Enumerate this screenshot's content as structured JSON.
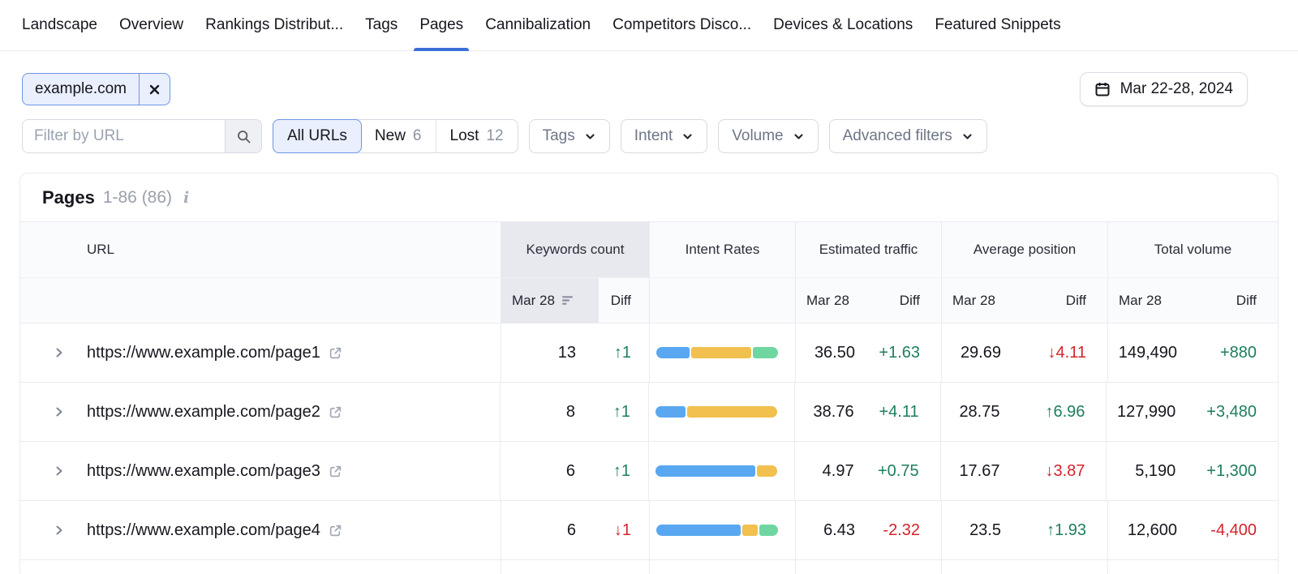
{
  "nav": {
    "tabs": [
      {
        "label": "Landscape",
        "active": false
      },
      {
        "label": "Overview",
        "active": false
      },
      {
        "label": "Rankings Distribut...",
        "active": false
      },
      {
        "label": "Tags",
        "active": false
      },
      {
        "label": "Pages",
        "active": true
      },
      {
        "label": "Cannibalization",
        "active": false
      },
      {
        "label": "Competitors Disco...",
        "active": false
      },
      {
        "label": "Devices & Locations",
        "active": false
      },
      {
        "label": "Featured Snippets",
        "active": false
      }
    ]
  },
  "filters": {
    "chip_label": "example.com",
    "date_range": "Mar 22-28, 2024",
    "url_filter_placeholder": "Filter by URL",
    "segments": [
      {
        "label": "All URLs",
        "count": "",
        "active": true
      },
      {
        "label": "New",
        "count": "6",
        "active": false
      },
      {
        "label": "Lost",
        "count": "12",
        "active": false
      }
    ],
    "dropdowns": [
      {
        "label": "Tags"
      },
      {
        "label": "Intent"
      },
      {
        "label": "Volume"
      },
      {
        "label": "Advanced filters"
      }
    ]
  },
  "table": {
    "title": "Pages",
    "range": "1-86 (86)",
    "columns": {
      "url": "URL",
      "keywords": "Keywords count",
      "intent": "Intent Rates",
      "traffic": "Estimated traffic",
      "position": "Average position",
      "volume": "Total volume",
      "sub_date": "Mar 28",
      "sub_diff": "Diff"
    },
    "rows": [
      {
        "url": "https://www.example.com/page1",
        "keywords": "13",
        "keywords_diff": "↑1",
        "keywords_trend": "up",
        "intent_segments": [
          {
            "color": "blue",
            "pct": 28
          },
          {
            "color": "yellow",
            "pct": 51
          },
          {
            "color": "green",
            "pct": 21
          }
        ],
        "traffic": "36.50",
        "traffic_diff": "+1.63",
        "traffic_trend": "up",
        "position": "29.69",
        "position_diff": "↓4.11",
        "position_trend": "down",
        "volume": "149,490",
        "volume_diff": "+880",
        "volume_trend": "up"
      },
      {
        "url": "https://www.example.com/page2",
        "keywords": "8",
        "keywords_diff": "↑1",
        "keywords_trend": "up",
        "intent_segments": [
          {
            "color": "blue",
            "pct": 25
          },
          {
            "color": "yellow",
            "pct": 75
          }
        ],
        "traffic": "38.76",
        "traffic_diff": "+4.11",
        "traffic_trend": "up",
        "position": "28.75",
        "position_diff": "↑6.96",
        "position_trend": "up",
        "volume": "127,990",
        "volume_diff": "+3,480",
        "volume_trend": "up"
      },
      {
        "url": "https://www.example.com/page3",
        "keywords": "6",
        "keywords_diff": "↑1",
        "keywords_trend": "up",
        "intent_segments": [
          {
            "color": "blue",
            "pct": 83
          },
          {
            "color": "yellow",
            "pct": 17
          }
        ],
        "traffic": "4.97",
        "traffic_diff": "+0.75",
        "traffic_trend": "up",
        "position": "17.67",
        "position_diff": "↓3.87",
        "position_trend": "down",
        "volume": "5,190",
        "volume_diff": "+1,300",
        "volume_trend": "up"
      },
      {
        "url": "https://www.example.com/page4",
        "keywords": "6",
        "keywords_diff": "↓1",
        "keywords_trend": "down",
        "intent_segments": [
          {
            "color": "blue",
            "pct": 71
          },
          {
            "color": "yellow",
            "pct": 13
          },
          {
            "color": "green",
            "pct": 16
          }
        ],
        "traffic": "6.43",
        "traffic_diff": "-2.32",
        "traffic_trend": "down",
        "position": "23.5",
        "position_diff": "↑1.93",
        "position_trend": "up",
        "volume": "12,600",
        "volume_diff": "-4,400",
        "volume_trend": "down"
      }
    ]
  },
  "colors": {
    "accent_blue": "#3b6fd8",
    "positive_green": "#1e7e5f",
    "negative_red": "#d4232c",
    "intent_blue": "#59a7f1",
    "intent_yellow": "#f1c04f",
    "intent_green": "#6fd6a2",
    "sorted_column_bg": "#e8e8ef",
    "chip_bg": "#e9effc",
    "chip_border": "#6e96e6"
  },
  "icons": [
    "calendar-icon",
    "search-icon",
    "close-icon",
    "chevron-down-icon",
    "chevron-right-icon",
    "external-link-icon",
    "sort-desc-icon",
    "info-icon"
  ]
}
